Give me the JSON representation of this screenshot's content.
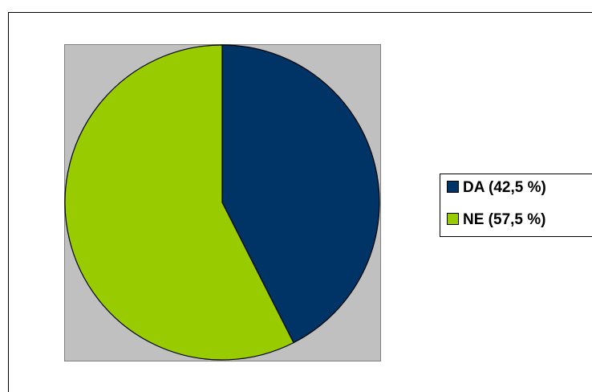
{
  "chart_data": {
    "type": "pie",
    "categories": [
      "DA (42,5 %)",
      "NE (57,5 %)"
    ],
    "values": [
      42.5,
      57.5
    ],
    "colors": [
      "#003366",
      "#99cc00"
    ],
    "legend": "right"
  }
}
